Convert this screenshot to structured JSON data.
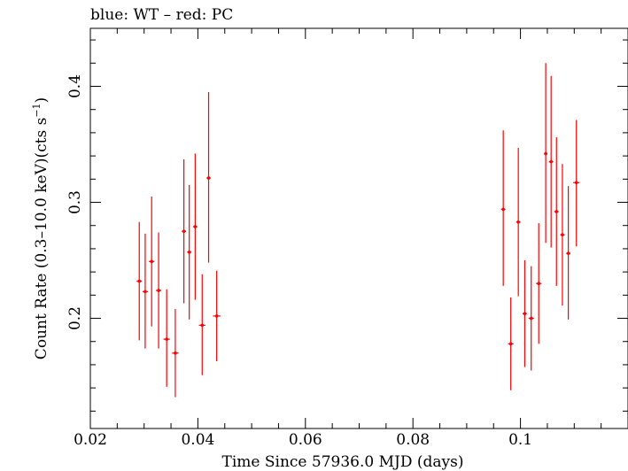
{
  "chart_data": {
    "type": "scatter",
    "title": "blue: WT – red: PC",
    "xlabel": "Time Since 57936.0 MJD (days)",
    "ylabel": "Count Rate (0.3–10.0 keV)(cts s",
    "ylabel_sup": "−1",
    "ylabel_end": ")",
    "xlim": [
      0.02,
      0.12
    ],
    "ylim": [
      0.105,
      0.45
    ],
    "xticks": [
      0.02,
      0.04,
      0.06,
      0.08,
      0.1
    ],
    "xtick_labels": [
      "0.02",
      "0.04",
      "0.06",
      "0.08",
      "0.1"
    ],
    "yticks": [
      0.2,
      0.3,
      0.4
    ],
    "ytick_labels": [
      "0.2",
      "0.3",
      "0.4"
    ],
    "grid": false,
    "series": [
      {
        "color": "#ff0000",
        "points": [
          {
            "x": 0.0291,
            "xerr": 0.0005,
            "y": 0.232,
            "ylo": 0.181,
            "yhi": 0.283
          },
          {
            "x": 0.0302,
            "xerr": 0.0005,
            "y": 0.223,
            "ylo": 0.174,
            "yhi": 0.273
          },
          {
            "x": 0.0314,
            "xerr": 0.0005,
            "y": 0.249,
            "ylo": 0.193,
            "yhi": 0.305
          },
          {
            "x": 0.0327,
            "xerr": 0.0005,
            "y": 0.224,
            "ylo": 0.174,
            "yhi": 0.274
          },
          {
            "x": 0.0342,
            "xerr": 0.0006,
            "y": 0.182,
            "ylo": 0.141,
            "yhi": 0.225
          },
          {
            "x": 0.0358,
            "xerr": 0.0006,
            "y": 0.17,
            "ylo": 0.132,
            "yhi": 0.208
          },
          {
            "x": 0.0374,
            "xerr": 0.0004,
            "y": 0.275,
            "ylo": 0.213,
            "yhi": 0.337
          },
          {
            "x": 0.0384,
            "xerr": 0.0004,
            "y": 0.257,
            "ylo": 0.199,
            "yhi": 0.315
          },
          {
            "x": 0.0395,
            "xerr": 0.0004,
            "y": 0.279,
            "ylo": 0.216,
            "yhi": 0.342
          },
          {
            "x": 0.0408,
            "xerr": 0.0006,
            "y": 0.194,
            "ylo": 0.151,
            "yhi": 0.238
          },
          {
            "x": 0.042,
            "xerr": 0.0004,
            "y": 0.321,
            "ylo": 0.248,
            "yhi": 0.395
          },
          {
            "x": 0.0435,
            "xerr": 0.0007,
            "y": 0.202,
            "ylo": 0.163,
            "yhi": 0.241
          },
          {
            "x": 0.0968,
            "xerr": 0.0004,
            "y": 0.294,
            "ylo": 0.228,
            "yhi": 0.362
          },
          {
            "x": 0.0982,
            "xerr": 0.0005,
            "y": 0.178,
            "ylo": 0.138,
            "yhi": 0.218
          },
          {
            "x": 0.0996,
            "xerr": 0.0004,
            "y": 0.283,
            "ylo": 0.219,
            "yhi": 0.347
          },
          {
            "x": 0.1008,
            "xerr": 0.0004,
            "y": 0.204,
            "ylo": 0.158,
            "yhi": 0.25
          },
          {
            "x": 0.102,
            "xerr": 0.0005,
            "y": 0.2,
            "ylo": 0.155,
            "yhi": 0.245
          },
          {
            "x": 0.1034,
            "xerr": 0.0005,
            "y": 0.23,
            "ylo": 0.178,
            "yhi": 0.282
          },
          {
            "x": 0.1047,
            "xerr": 0.0003,
            "y": 0.342,
            "ylo": 0.265,
            "yhi": 0.42
          },
          {
            "x": 0.1057,
            "xerr": 0.0004,
            "y": 0.335,
            "ylo": 0.261,
            "yhi": 0.409
          },
          {
            "x": 0.1067,
            "xerr": 0.0004,
            "y": 0.292,
            "ylo": 0.228,
            "yhi": 0.356
          },
          {
            "x": 0.1078,
            "xerr": 0.0004,
            "y": 0.272,
            "ylo": 0.211,
            "yhi": 0.333
          },
          {
            "x": 0.1089,
            "xerr": 0.0004,
            "y": 0.256,
            "ylo": 0.199,
            "yhi": 0.314
          },
          {
            "x": 0.1104,
            "xerr": 0.0006,
            "y": 0.317,
            "ylo": 0.262,
            "yhi": 0.371
          }
        ]
      }
    ]
  }
}
